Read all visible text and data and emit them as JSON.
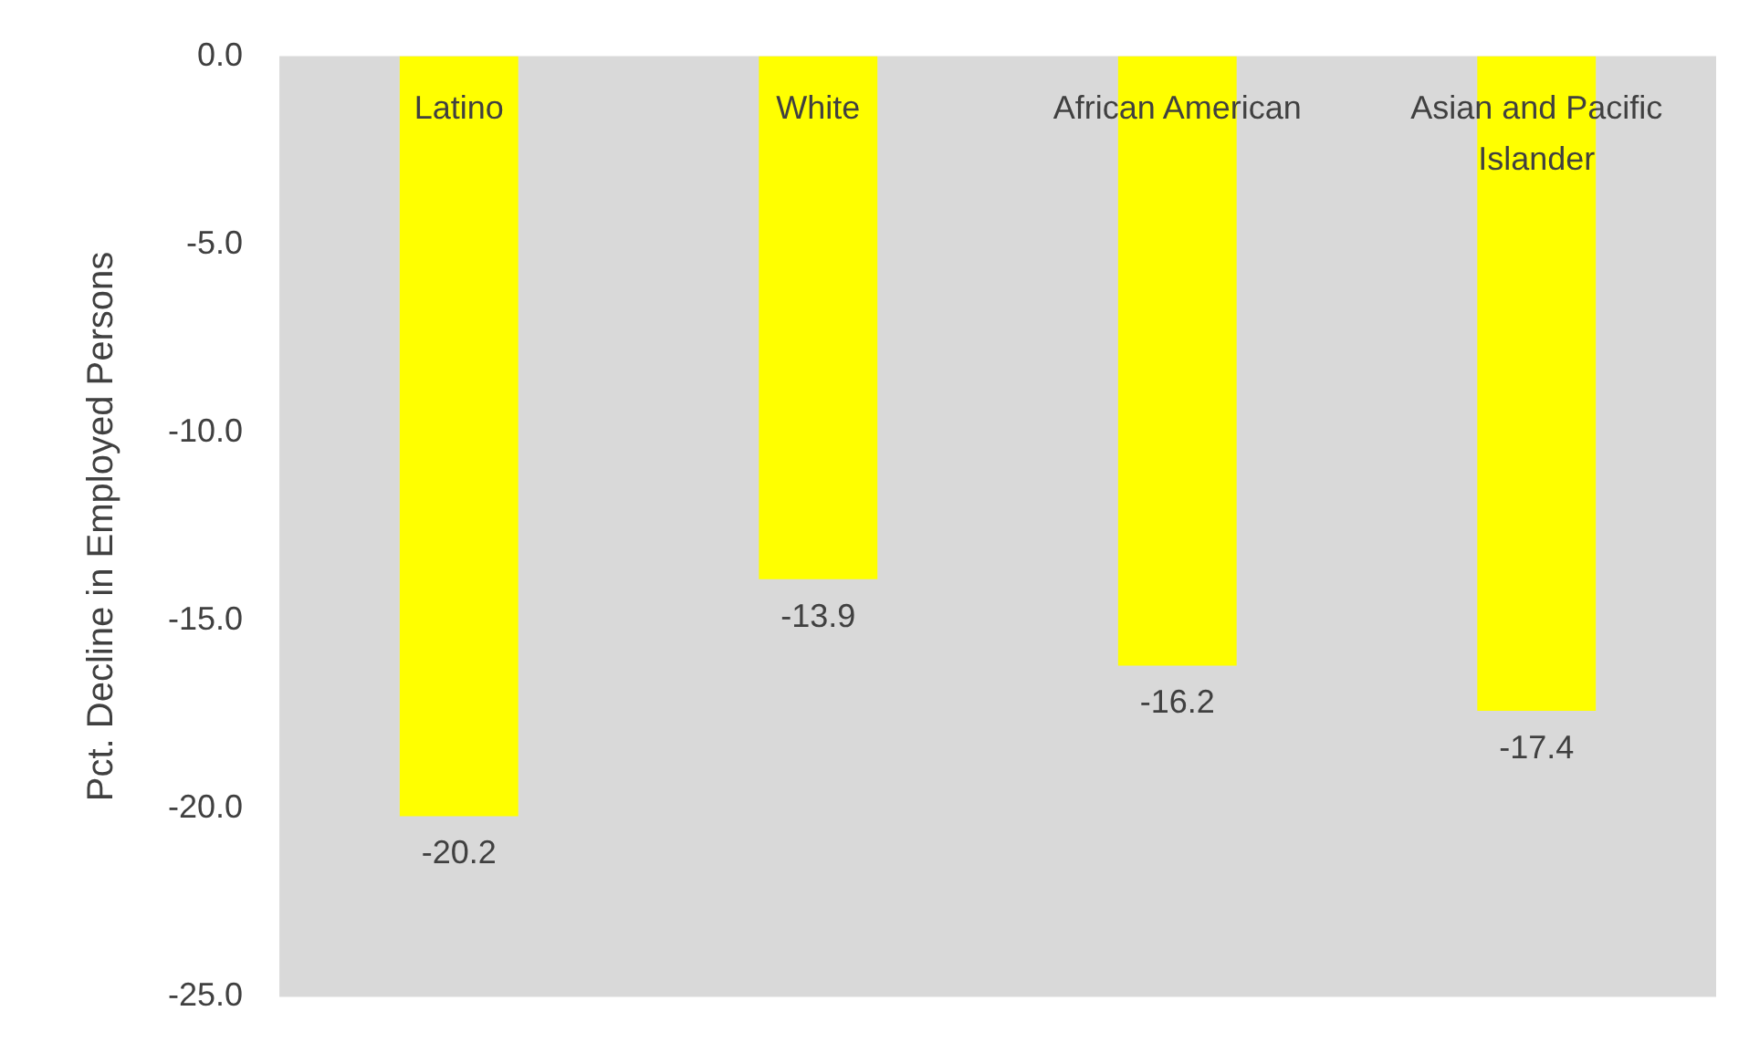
{
  "chart_data": {
    "type": "bar",
    "ylabel": "Pct. Decline in Employed Persons",
    "categories": [
      "Latino",
      "White",
      "African American",
      "Asian and Pacific Islander"
    ],
    "values": [
      -20.2,
      -13.9,
      -16.2,
      -17.4
    ],
    "color": "#ffff00",
    "ylim": [
      -25,
      0
    ],
    "yticks": [
      {
        "value": -25,
        "label": "-25.0"
      },
      {
        "value": -20,
        "label": "-20.0"
      },
      {
        "value": -15,
        "label": "-15.0"
      },
      {
        "value": -10,
        "label": "-10.0"
      },
      {
        "value": -5,
        "label": "-5.0"
      },
      {
        "value": 0,
        "label": "0.0"
      }
    ],
    "grid": false,
    "legend": false,
    "data_labels": true
  }
}
